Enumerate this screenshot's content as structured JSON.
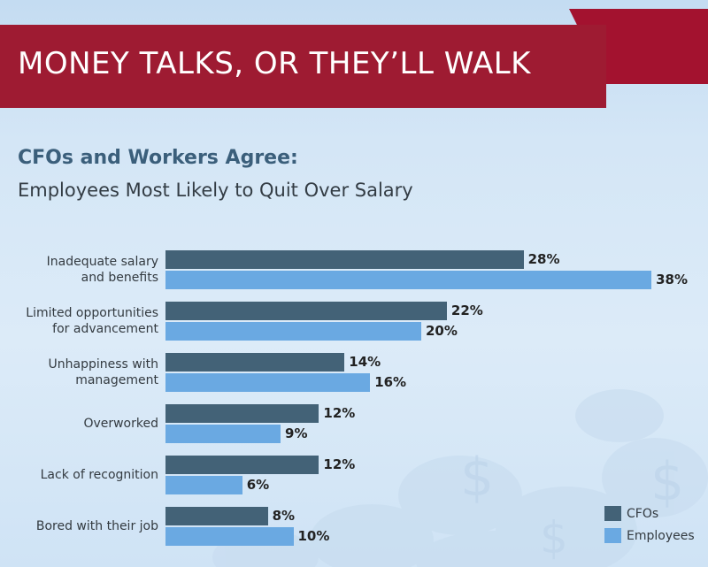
{
  "banner": {
    "title": "MONEY TALKS, OR THEY’LL WALK",
    "color": "#9e1b32"
  },
  "heading": {
    "bold": "CFOs and Workers Agree:",
    "light": "Employees Most Likely to Quit Over Salary"
  },
  "chart_data": {
    "type": "bar",
    "orientation": "horizontal",
    "categories": [
      "Inadequate salary\nand benefits",
      "Limited opportunities\nfor advancement",
      "Unhappiness with\nmanagement",
      "Overworked",
      "Lack of recognition",
      "Bored with their job"
    ],
    "series": [
      {
        "name": "CFOs",
        "color": "#436277",
        "values": [
          28,
          22,
          14,
          12,
          12,
          8
        ],
        "labels": [
          "28%",
          "22%",
          "14%",
          "12%",
          "12%",
          "8%"
        ]
      },
      {
        "name": "Employees",
        "color": "#6aa9e2",
        "values": [
          38,
          20,
          16,
          9,
          6,
          10
        ],
        "labels": [
          "38%",
          "20%",
          "16%",
          "9%",
          "6%",
          "10%"
        ]
      }
    ],
    "unit": "%",
    "xlim": [
      0,
      38
    ],
    "grid": false,
    "legend": "bottom-right"
  }
}
